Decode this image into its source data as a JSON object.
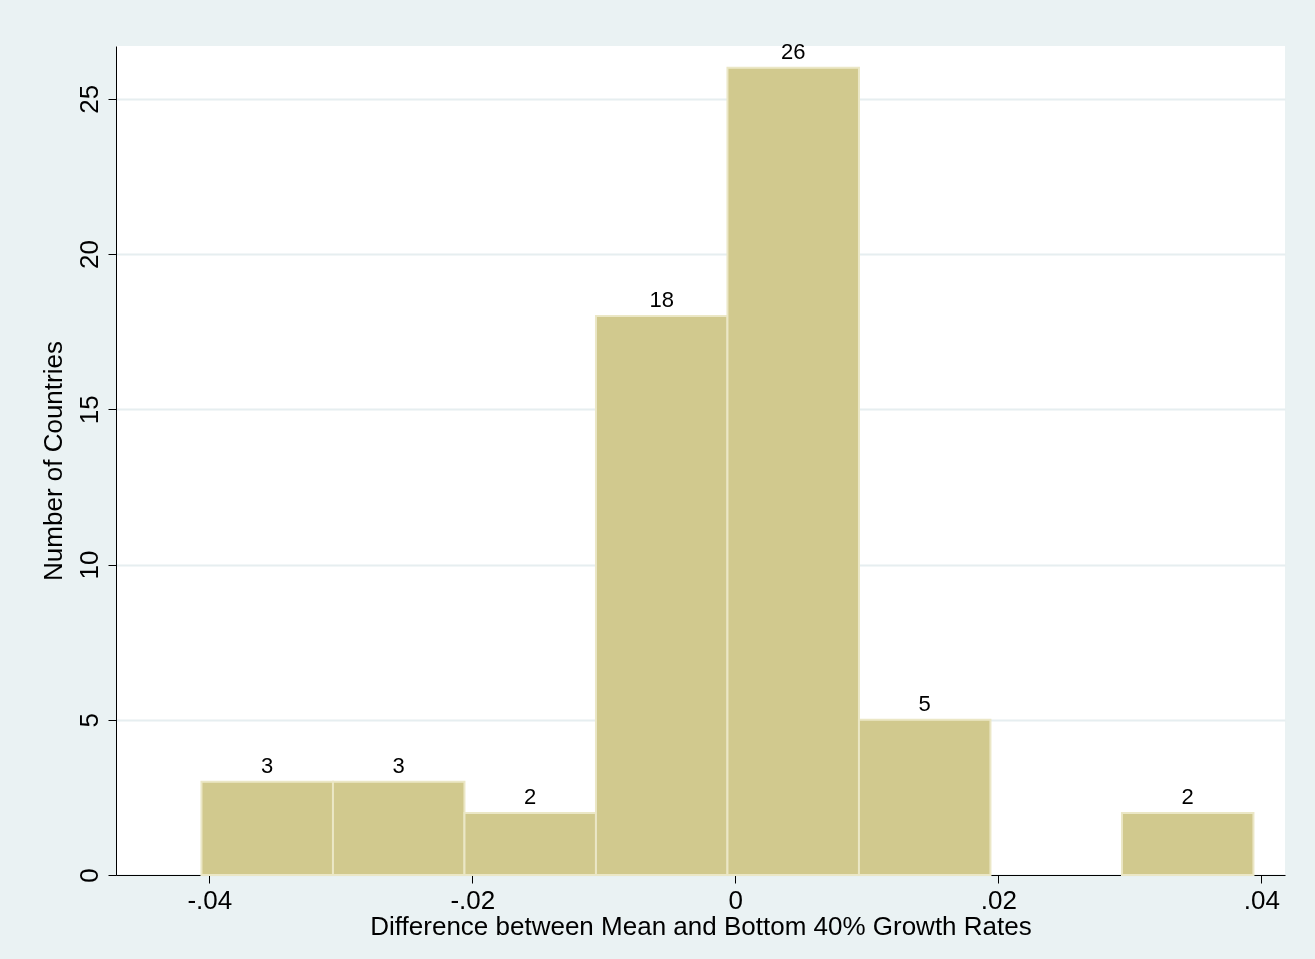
{
  "chart_data": {
    "type": "histogram",
    "xlabel": "Difference between Mean and Bottom 40% Growth Rates",
    "ylabel": "Number of Countries",
    "bins": [
      -0.0406,
      -0.0306,
      -0.0206,
      -0.0106,
      -0.0006,
      0.0094,
      0.0194,
      0.0294,
      0.0394
    ],
    "values": [
      3,
      3,
      2,
      18,
      26,
      5,
      0,
      2
    ],
    "value_labels": [
      "3",
      "3",
      "2",
      "18",
      "26",
      "5",
      null,
      "2"
    ],
    "color": "#d1c98e",
    "xlim": [
      -0.0471,
      0.0418
    ],
    "ylim": [
      0,
      26.7
    ],
    "xticks": [
      {
        "value": -0.04,
        "label": "-.04"
      },
      {
        "value": -0.02,
        "label": "-.02"
      },
      0,
      {
        "value": 0.02,
        "label": ".02"
      },
      {
        "value": 0.04,
        "label": ".04"
      }
    ],
    "yticks": [
      0,
      5,
      10,
      15,
      20,
      25
    ],
    "grid": "y"
  }
}
